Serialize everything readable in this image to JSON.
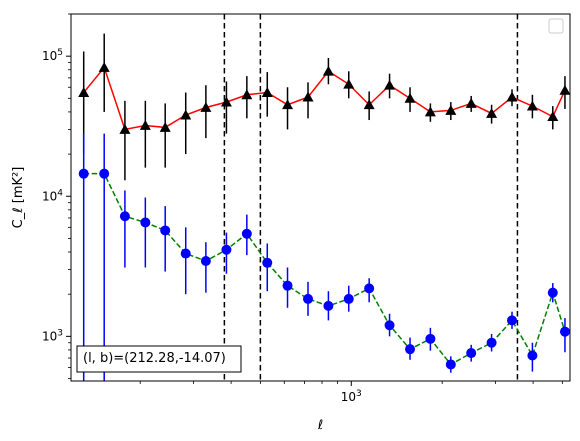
{
  "chart_data": {
    "type": "scatter",
    "xscale": "log",
    "yscale": "log",
    "xlim": [
      118,
      5300
    ],
    "ylim": [
      480,
      200000
    ],
    "xlabel": "ℓ",
    "ylabel": "C_ℓ [mK²]",
    "x_ticks": [
      {
        "value": 1000,
        "label": "10^3"
      }
    ],
    "y_ticks": [
      {
        "value": 1000,
        "label": "10^3"
      },
      {
        "value": 10000,
        "label": "10^4"
      },
      {
        "value": 100000,
        "label": "10^5"
      }
    ],
    "vlines": [
      380,
      500,
      3550
    ],
    "legend": {
      "placement": "top-right",
      "entries": []
    },
    "annotation": "(l, b)=(212.28,-14.07)",
    "series": [
      {
        "color": "#ff0000",
        "linestyle": "solid",
        "marker": "triangle",
        "marker_color": "#000000",
        "errorbar_color": "#000000",
        "points": [
          {
            "x": 130,
            "y": 55000,
            "ylo": 20000,
            "yhi": 108000
          },
          {
            "x": 152,
            "y": 83000,
            "ylo": 40000,
            "yhi": 145000
          },
          {
            "x": 178,
            "y": 30000,
            "ylo": 13000,
            "yhi": 48000
          },
          {
            "x": 208,
            "y": 32000,
            "ylo": 16000,
            "yhi": 48000
          },
          {
            "x": 242,
            "y": 31000,
            "ylo": 16000,
            "yhi": 46000
          },
          {
            "x": 283,
            "y": 38000,
            "ylo": 20000,
            "yhi": 55000
          },
          {
            "x": 330,
            "y": 43000,
            "ylo": 26000,
            "yhi": 62000
          },
          {
            "x": 386,
            "y": 47000,
            "ylo": 28000,
            "yhi": 66000
          },
          {
            "x": 451,
            "y": 53000,
            "ylo": 36000,
            "yhi": 72000
          },
          {
            "x": 527,
            "y": 55000,
            "ylo": 37000,
            "yhi": 77000
          },
          {
            "x": 615,
            "y": 45000,
            "ylo": 30000,
            "yhi": 60000
          },
          {
            "x": 719,
            "y": 51000,
            "ylo": 36000,
            "yhi": 65000
          },
          {
            "x": 840,
            "y": 78000,
            "ylo": 63000,
            "yhi": 97000
          },
          {
            "x": 981,
            "y": 63000,
            "ylo": 50000,
            "yhi": 78000
          },
          {
            "x": 1146,
            "y": 45000,
            "ylo": 35000,
            "yhi": 56000
          },
          {
            "x": 1339,
            "y": 62000,
            "ylo": 50000,
            "yhi": 75000
          },
          {
            "x": 1565,
            "y": 50000,
            "ylo": 40000,
            "yhi": 60000
          },
          {
            "x": 1828,
            "y": 40000,
            "ylo": 34000,
            "yhi": 46000
          },
          {
            "x": 2136,
            "y": 41000,
            "ylo": 35000,
            "yhi": 47000
          },
          {
            "x": 2495,
            "y": 46000,
            "ylo": 40000,
            "yhi": 52000
          },
          {
            "x": 2915,
            "y": 39000,
            "ylo": 33000,
            "yhi": 45000
          },
          {
            "x": 3406,
            "y": 51000,
            "ylo": 44000,
            "yhi": 58000
          },
          {
            "x": 3979,
            "y": 44000,
            "ylo": 36000,
            "yhi": 53000
          },
          {
            "x": 4648,
            "y": 37000,
            "ylo": 30000,
            "yhi": 44000
          },
          {
            "x": 5100,
            "y": 57000,
            "ylo": 42000,
            "yhi": 72000
          }
        ]
      },
      {
        "color": "#008000",
        "linestyle": "dashed",
        "marker": "circle",
        "marker_color": "#0000ff",
        "errorbar_color": "#0000ff",
        "points": [
          {
            "x": 130,
            "y": 14500,
            "ylo": 480,
            "yhi": 28000
          },
          {
            "x": 152,
            "y": 14500,
            "ylo": 480,
            "yhi": 28000
          },
          {
            "x": 178,
            "y": 7200,
            "ylo": 3100,
            "yhi": 11000
          },
          {
            "x": 208,
            "y": 6500,
            "ylo": 3100,
            "yhi": 9800
          },
          {
            "x": 242,
            "y": 5700,
            "ylo": 2900,
            "yhi": 8500
          },
          {
            "x": 283,
            "y": 3900,
            "ylo": 2000,
            "yhi": 6000
          },
          {
            "x": 330,
            "y": 3450,
            "ylo": 2050,
            "yhi": 4700
          },
          {
            "x": 386,
            "y": 4150,
            "ylo": 2800,
            "yhi": 5500
          },
          {
            "x": 451,
            "y": 5400,
            "ylo": 3800,
            "yhi": 7400
          },
          {
            "x": 527,
            "y": 3350,
            "ylo": 2100,
            "yhi": 4600
          },
          {
            "x": 615,
            "y": 2300,
            "ylo": 1600,
            "yhi": 3100
          },
          {
            "x": 719,
            "y": 1850,
            "ylo": 1400,
            "yhi": 2450
          },
          {
            "x": 840,
            "y": 1650,
            "ylo": 1300,
            "yhi": 2100
          },
          {
            "x": 981,
            "y": 1850,
            "ylo": 1500,
            "yhi": 2300
          },
          {
            "x": 1146,
            "y": 2200,
            "ylo": 1750,
            "yhi": 2600
          },
          {
            "x": 1339,
            "y": 1200,
            "ylo": 1000,
            "yhi": 1450
          },
          {
            "x": 1565,
            "y": 810,
            "ylo": 680,
            "yhi": 980
          },
          {
            "x": 1828,
            "y": 960,
            "ylo": 790,
            "yhi": 1150
          },
          {
            "x": 2136,
            "y": 630,
            "ylo": 550,
            "yhi": 720
          },
          {
            "x": 2495,
            "y": 760,
            "ylo": 660,
            "yhi": 870
          },
          {
            "x": 2915,
            "y": 900,
            "ylo": 780,
            "yhi": 1040
          },
          {
            "x": 3406,
            "y": 1300,
            "ylo": 1130,
            "yhi": 1500
          },
          {
            "x": 3979,
            "y": 730,
            "ylo": 560,
            "yhi": 900
          },
          {
            "x": 4648,
            "y": 2050,
            "ylo": 1750,
            "yhi": 2400
          },
          {
            "x": 5100,
            "y": 1080,
            "ylo": 770,
            "yhi": 1350
          }
        ]
      }
    ]
  }
}
